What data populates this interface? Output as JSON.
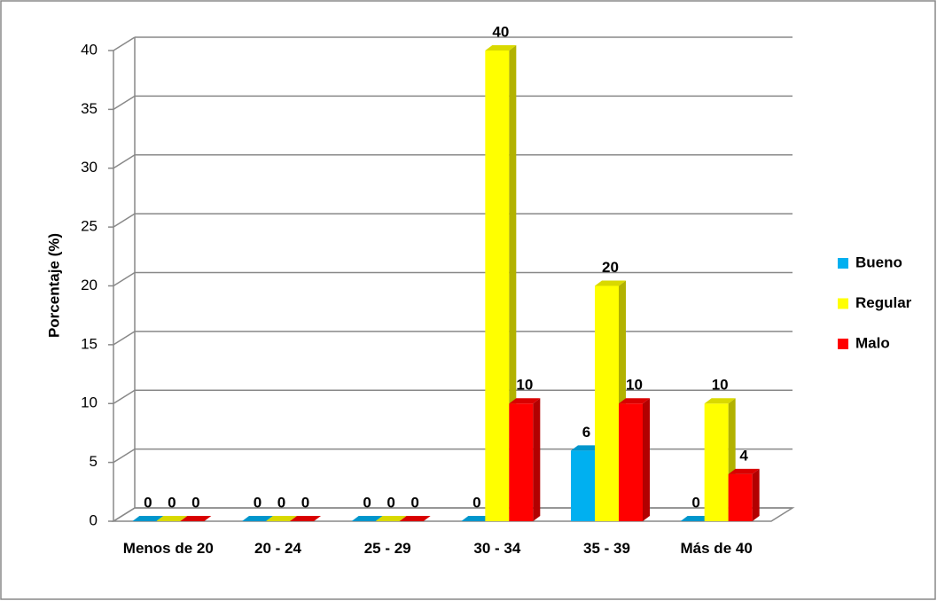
{
  "chart_data": {
    "type": "bar3d",
    "y_label": "Porcentaje (%)",
    "categories": [
      "Menos de 20",
      "20 - 24",
      "25 - 29",
      "30 - 34",
      "35 - 39",
      "Más de 40"
    ],
    "series": [
      {
        "name": "Bueno",
        "color": "#00b0f0",
        "values": [
          0,
          0,
          0,
          0,
          6,
          0
        ]
      },
      {
        "name": "Regular",
        "color": "#ffff00",
        "values": [
          0,
          0,
          0,
          40,
          20,
          10
        ]
      },
      {
        "name": "Malo",
        "color": "#ff0000",
        "values": [
          0,
          0,
          0,
          10,
          10,
          4
        ]
      }
    ],
    "ylim": [
      0,
      40
    ],
    "yticks": [
      0,
      5,
      10,
      15,
      20,
      25,
      30,
      35,
      40
    ],
    "grid": true,
    "legend": "right"
  }
}
